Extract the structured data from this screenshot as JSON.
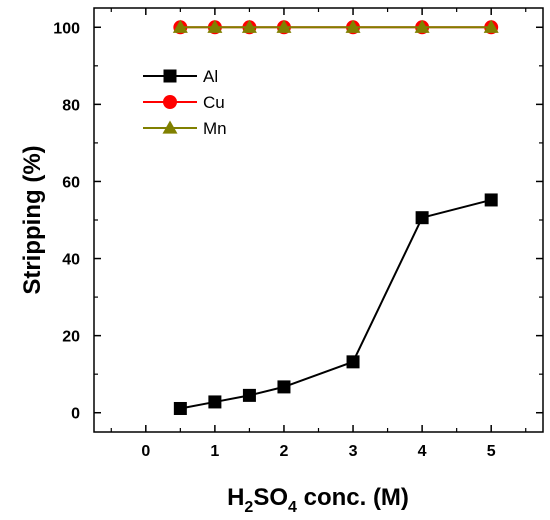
{
  "chart_data": {
    "type": "line",
    "xlabel": {
      "main": "H",
      "sub1": "2",
      "mid": "SO",
      "sub2": "4",
      "tail": " conc. (M)"
    },
    "ylabel": "Stripping (%)",
    "xlim": [
      -0.75,
      5.75
    ],
    "ylim": [
      -5,
      105
    ],
    "xticks": [
      "0",
      "1",
      "2",
      "3",
      "4",
      "5"
    ],
    "yticks": [
      "0",
      "20",
      "40",
      "60",
      "80",
      "100"
    ],
    "grid": false,
    "legend_position": "top-left",
    "series": [
      {
        "name": "Al",
        "color": "#000000",
        "marker": "square",
        "x": [
          0.5,
          1,
          1.5,
          2,
          3,
          4,
          5
        ],
        "y": [
          1.1,
          2.8,
          4.5,
          6.7,
          13.2,
          50.6,
          55.2
        ]
      },
      {
        "name": "Cu",
        "color": "#ff0000",
        "marker": "circle",
        "x": [
          0.5,
          1,
          1.5,
          2,
          3,
          4,
          5
        ],
        "y": [
          100,
          100,
          100,
          100,
          100,
          100,
          100
        ]
      },
      {
        "name": "Mn",
        "color": "#808000",
        "marker": "triangle",
        "x": [
          0.5,
          1,
          1.5,
          2,
          3,
          4,
          5
        ],
        "y": [
          100,
          100,
          100,
          100,
          100,
          100,
          100
        ]
      }
    ]
  }
}
